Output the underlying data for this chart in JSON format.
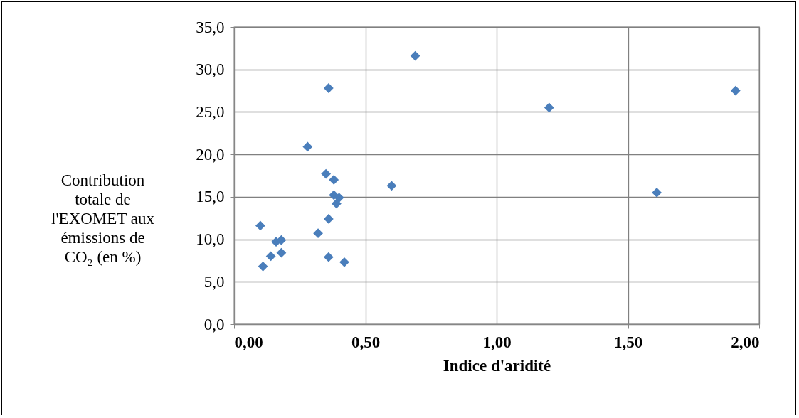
{
  "chart_data": {
    "type": "scatter",
    "xlabel": "Indice d'aridité",
    "ylabel": "Contribution totale de l'EXOMET aux émissions de CO₂ (en %)",
    "x": [
      0.1,
      0.11,
      0.14,
      0.16,
      0.18,
      0.18,
      0.28,
      0.32,
      0.35,
      0.36,
      0.36,
      0.36,
      0.38,
      0.38,
      0.4,
      0.39,
      0.42,
      0.6,
      0.69,
      1.2,
      1.61,
      1.91
    ],
    "series": [
      {
        "color": "#4a7ebb",
        "values": [
          11.6,
          6.8,
          8.0,
          9.7,
          9.9,
          8.4,
          20.9,
          10.7,
          17.7,
          27.8,
          12.4,
          7.9,
          17.0,
          15.2,
          14.9,
          14.2,
          7.3,
          16.3,
          31.6,
          25.5,
          15.5,
          27.5
        ]
      }
    ],
    "xlim": [
      0,
      2
    ],
    "xticks": [
      {
        "value": 0,
        "label": "0,00"
      },
      {
        "value": 0.5,
        "label": "0,50"
      },
      {
        "value": 1,
        "label": "1,00"
      },
      {
        "value": 1.5,
        "label": "1,50"
      },
      {
        "value": 2,
        "label": "2,00"
      }
    ],
    "ylim": [
      0,
      35
    ],
    "yticks": [
      {
        "value": 0,
        "label": "0,0"
      },
      {
        "value": 5,
        "label": "5,0"
      },
      {
        "value": 10,
        "label": "10,0"
      },
      {
        "value": 15,
        "label": "15,0"
      },
      {
        "value": 20,
        "label": "20,0"
      },
      {
        "value": 25,
        "label": "25,0"
      },
      {
        "value": 30,
        "label": "30,0"
      },
      {
        "value": 35,
        "label": "35,0"
      }
    ],
    "grid": true,
    "marker": "diamond"
  }
}
